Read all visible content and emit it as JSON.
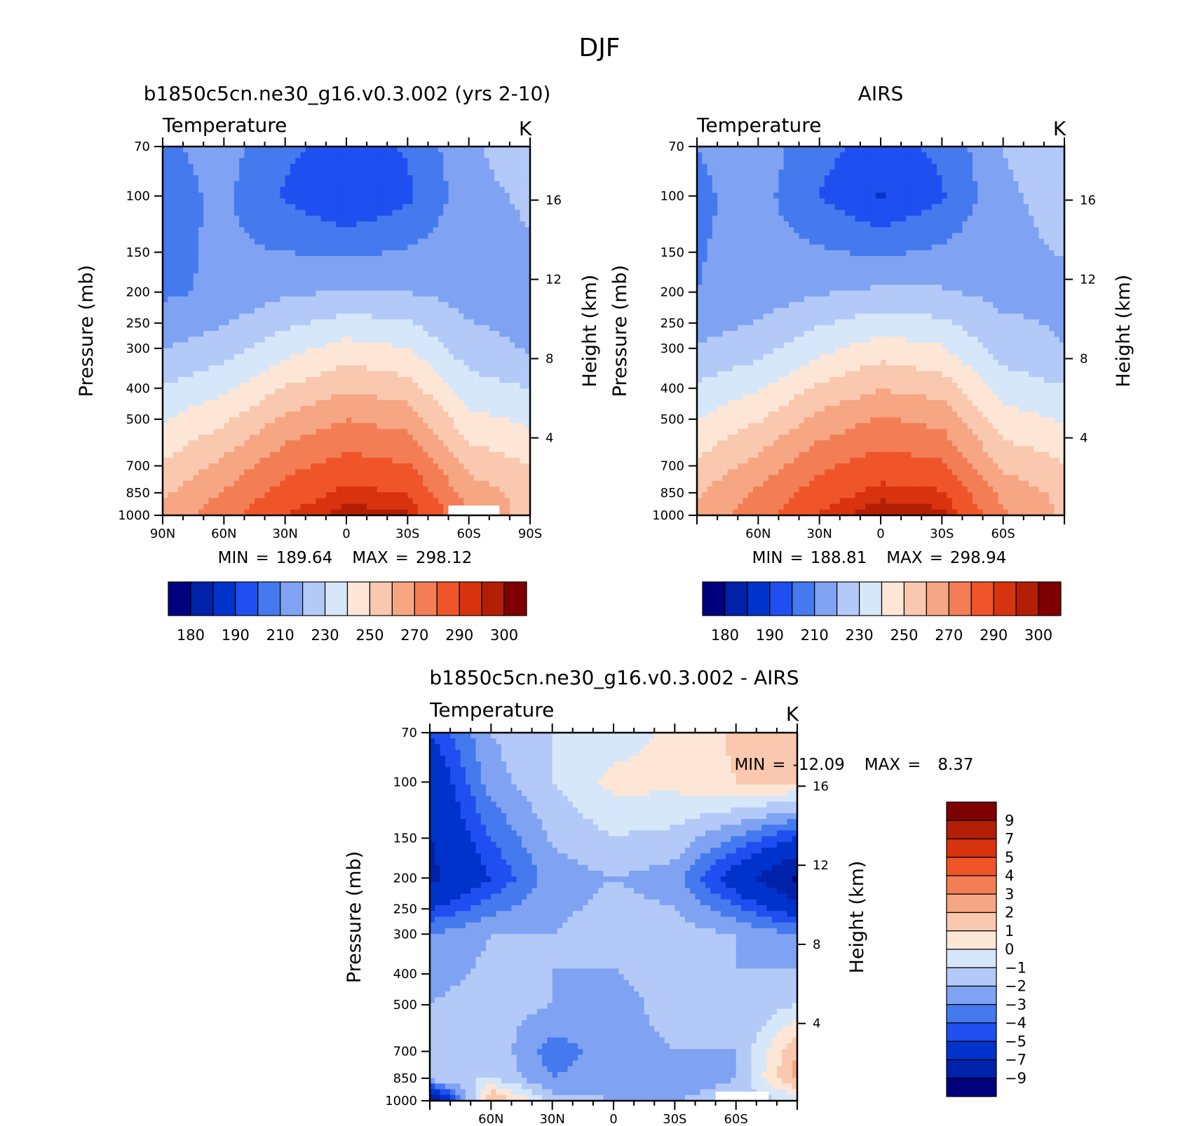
{
  "figure": {
    "title": "DJF",
    "stats_sep": "="
  },
  "colors": {
    "abs_levels": [
      "#00007f",
      "#0022aa",
      "#0033cc",
      "#1f4ff0",
      "#4579ee",
      "#7fa3f2",
      "#b3c9f7",
      "#d6e7fa",
      "#fde6d6",
      "#fac8ae",
      "#f6a683",
      "#f37e55",
      "#f0552a",
      "#d8330f",
      "#b21f06",
      "#7f0000"
    ],
    "diff_levels": [
      "#00007f",
      "#0022aa",
      "#0033cc",
      "#1f4ff0",
      "#4579ee",
      "#7fa3f2",
      "#b3c9f7",
      "#d6e7fa",
      "#fde6d6",
      "#fac8ae",
      "#f6a683",
      "#f37e55",
      "#f0552a",
      "#d8330f",
      "#b21f06",
      "#7f0000"
    ],
    "missing": "#ffffff"
  },
  "panels": [
    {
      "title": "b1850c5cn.ne30_g16.v0.3.002 (yrs 2-10)",
      "variable": "Temperature",
      "units": "K",
      "ylabel": "Pressure (mb)",
      "y2label": "Height (km)",
      "min_label": "MIN",
      "min": "189.64",
      "max_label": "MAX",
      "max": "298.12",
      "colorbar_labels": [
        "180",
        "190",
        "210",
        "230",
        "250",
        "270",
        "290",
        "300"
      ]
    },
    {
      "title": "AIRS",
      "variable": "Temperature",
      "units": "K",
      "ylabel": "Pressure (mb)",
      "y2label": "Height (km)",
      "min_label": "MIN",
      "min": "188.81",
      "max_label": "MAX",
      "max": "298.94",
      "colorbar_labels": [
        "180",
        "190",
        "210",
        "230",
        "250",
        "270",
        "290",
        "300"
      ]
    },
    {
      "title": "b1850c5cn.ne30_g16.v0.3.002 - AIRS",
      "variable": "Temperature",
      "units": "K",
      "ylabel": "Pressure (mb)",
      "y2label": "Height (km)",
      "min_label": "MIN",
      "min": "-12.09",
      "max_label": "MAX",
      "max": "8.37",
      "colorbar_labels": [
        "9",
        "7",
        "5",
        "4",
        "3",
        "2",
        "1",
        "0",
        "−1",
        "−2",
        "−3",
        "−4",
        "−5",
        "−7",
        "−9"
      ]
    }
  ],
  "chart_data": [
    {
      "type": "heatmap",
      "title": "b1850c5cn.ne30_g16.v0.3.002 (yrs 2-10)",
      "subtitle": "Temperature",
      "units": "K",
      "ylabel": "Pressure (mb)",
      "y2label": "Height (km)",
      "y_scale": "log",
      "xlim": [
        90,
        -90
      ],
      "ylim": [
        1000,
        70
      ],
      "x_ticks": [
        90,
        60,
        30,
        0,
        -30,
        -60,
        -90
      ],
      "x_tick_labels": [
        "90N",
        "60N",
        "30N",
        "0",
        "30S",
        "60S",
        "90S"
      ],
      "y_ticks": [
        70,
        100,
        150,
        200,
        250,
        300,
        400,
        500,
        700,
        850,
        1000
      ],
      "y2_ticks": [
        4,
        8,
        12,
        16
      ],
      "levels": [
        180,
        185,
        190,
        200,
        210,
        220,
        230,
        240,
        250,
        260,
        270,
        280,
        290,
        295,
        300
      ],
      "lat": [
        90,
        60,
        30,
        0,
        -30,
        -60,
        -90
      ],
      "pressure": [
        1000,
        850,
        700,
        500,
        300,
        200,
        100,
        70
      ],
      "values": [
        [
          262,
          276,
          290,
          298,
          296,
          270,
          255
        ],
        [
          258,
          271,
          284,
          292,
          290,
          266,
          256
        ],
        [
          251,
          263,
          277,
          284,
          281,
          257,
          250
        ],
        [
          239,
          248,
          262,
          270,
          266,
          243,
          238
        ],
        [
          220,
          225,
          236,
          244,
          240,
          224,
          219
        ],
        [
          208,
          212,
          218,
          221,
          220,
          216,
          216
        ],
        [
          206,
          212,
          199,
          190,
          198,
          216,
          222
        ],
        [
          208,
          214,
          202,
          196,
          201,
          218,
          228
        ]
      ],
      "min": 189.64,
      "max": 298.12
    },
    {
      "type": "heatmap",
      "title": "AIRS",
      "subtitle": "Temperature",
      "units": "K",
      "ylabel": "Pressure (mb)",
      "y2label": "Height (km)",
      "y_scale": "log",
      "xlim": [
        90,
        -90
      ],
      "ylim": [
        1000,
        70
      ],
      "x_tick_labels": [
        "60N",
        "30N",
        "0",
        "30S",
        "60S"
      ],
      "y_ticks": [
        70,
        100,
        150,
        200,
        250,
        300,
        400,
        500,
        700,
        850,
        1000
      ],
      "y2_ticks": [
        4,
        8,
        12,
        16
      ],
      "levels": [
        180,
        185,
        190,
        200,
        210,
        220,
        230,
        240,
        250,
        260,
        270,
        280,
        290,
        295,
        300
      ],
      "lat": [
        90,
        60,
        30,
        0,
        -30,
        -60,
        -90
      ],
      "pressure": [
        1000,
        850,
        700,
        500,
        300,
        200,
        100,
        70
      ],
      "values": [
        [
          263,
          276,
          291,
          299,
          297,
          272,
          258
        ],
        [
          259,
          272,
          285,
          293,
          291,
          267,
          257
        ],
        [
          252,
          264,
          278,
          285,
          282,
          258,
          251
        ],
        [
          240,
          249,
          263,
          271,
          267,
          244,
          239
        ],
        [
          221,
          226,
          237,
          245,
          241,
          225,
          220
        ],
        [
          210,
          214,
          219,
          222,
          221,
          217,
          218
        ],
        [
          208,
          214,
          200,
          189,
          199,
          218,
          224
        ],
        [
          210,
          216,
          203,
          197,
          202,
          220,
          230
        ]
      ],
      "min": 188.81,
      "max": 298.94
    },
    {
      "type": "heatmap",
      "title": "b1850c5cn.ne30_g16.v0.3.002 - AIRS",
      "subtitle": "Temperature",
      "units": "K",
      "ylabel": "Pressure (mb)",
      "y2label": "Height (km)",
      "y_scale": "log",
      "xlim": [
        90,
        -90
      ],
      "ylim": [
        1000,
        70
      ],
      "x_tick_labels": [
        "60N",
        "30N",
        "0",
        "30S",
        "60S"
      ],
      "y_ticks": [
        70,
        100,
        150,
        200,
        250,
        300,
        400,
        500,
        700,
        850,
        1000
      ],
      "y2_ticks": [
        4,
        8,
        12,
        16
      ],
      "levels": [
        -9,
        -7,
        -5,
        -4,
        -3,
        -2,
        -1,
        0,
        1,
        2,
        3,
        4,
        5,
        7,
        9
      ],
      "lat": [
        90,
        60,
        30,
        0,
        -30,
        -60,
        -90
      ],
      "pressure": [
        1000,
        850,
        700,
        500,
        300,
        200,
        100,
        70
      ],
      "values": [
        [
          -9.5,
          2.5,
          -1.5,
          -2.0,
          -2.0,
          -1.5,
          -1.0
        ],
        [
          -1.2,
          -1.0,
          -3.0,
          -2.5,
          -2.5,
          -2.0,
          2.5
        ],
        [
          -1.5,
          -1.2,
          -3.5,
          -2.5,
          -2.0,
          -2.0,
          2.0
        ],
        [
          -2.0,
          -1.5,
          -2.0,
          -2.5,
          -1.5,
          -2.0,
          -1.0
        ],
        [
          -3.0,
          -2.0,
          -2.0,
          -1.5,
          -1.5,
          -2.0,
          -3.0
        ],
        [
          -7.5,
          -5.0,
          -2.5,
          -2.0,
          -2.5,
          -6.0,
          -9.5
        ],
        [
          -6.5,
          -2.5,
          -1.0,
          0.3,
          0.3,
          1.0,
          1.2
        ],
        [
          -5.0,
          -2.0,
          -1.0,
          -0.5,
          0.2,
          1.2,
          1.5
        ]
      ],
      "min": -12.09,
      "max": 8.37
    }
  ]
}
